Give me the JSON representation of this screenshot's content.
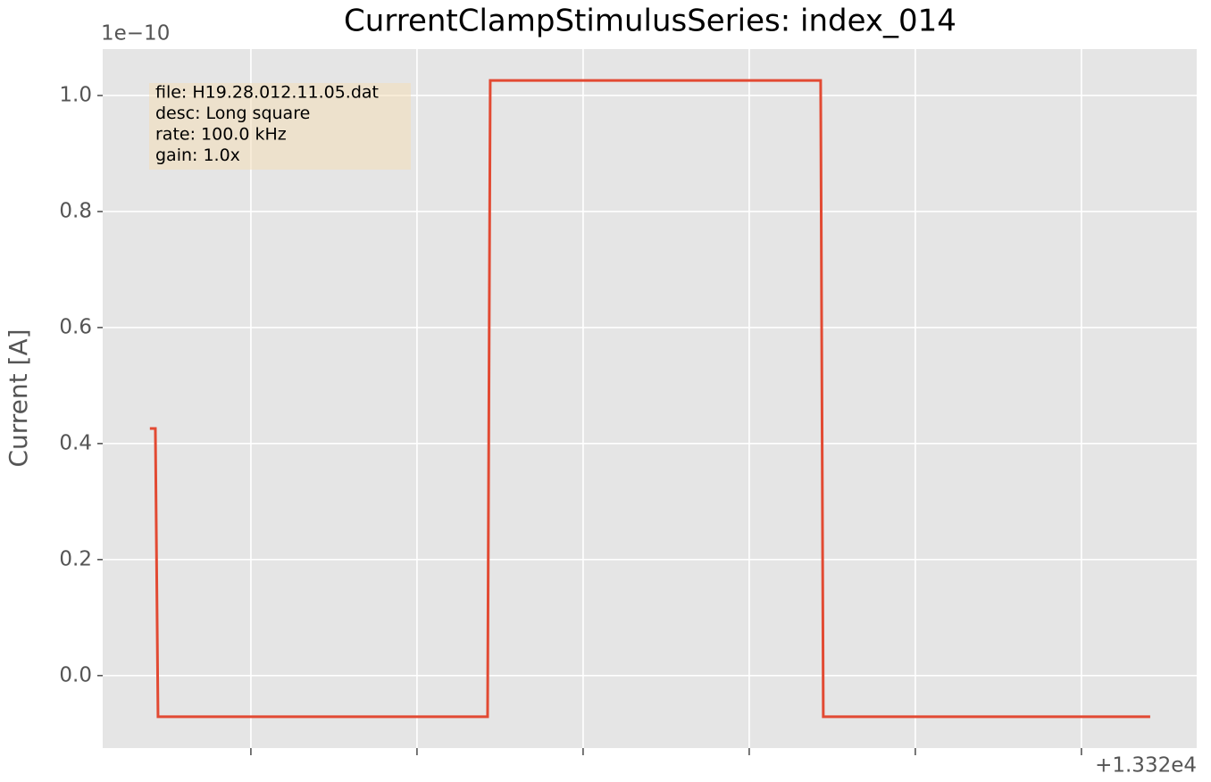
{
  "chart_data": {
    "type": "line",
    "title": "CurrentClampStimulusSeries: index_014",
    "y_label": "Current [A]",
    "y_offset_label": "1e−10",
    "x_offset_label": "+1.332e4",
    "annotation": [
      "file: H19.28.012.11.05.dat",
      "desc: Long square",
      "rate: 100.0 kHz",
      "gain: 1.0x"
    ],
    "x": [
      0.392,
      0.425,
      0.441,
      2.425,
      2.441,
      4.43,
      4.446,
      6.414
    ],
    "series": [
      {
        "name": "Current",
        "color": "#e24a33",
        "values": [
          0.426,
          0.426,
          -0.071,
          -0.071,
          1.026,
          1.026,
          -0.071,
          -0.071
        ]
      }
    ],
    "xlim": [
      0.108,
      6.694
    ],
    "ylim": [
      -0.125,
      1.08
    ],
    "xticks": [
      1,
      2,
      3,
      4,
      5,
      6
    ],
    "yticks": [
      {
        "value": 0,
        "label": "0.0"
      },
      0.2,
      0.4,
      0.6,
      0.8,
      {
        "value": 1,
        "label": "1.0"
      }
    ],
    "grid": true
  }
}
